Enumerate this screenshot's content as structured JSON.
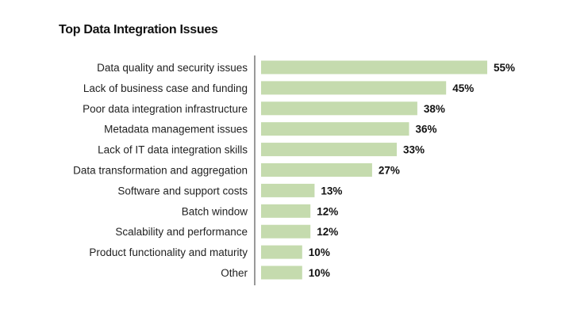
{
  "chart_data": {
    "type": "bar",
    "orientation": "horizontal",
    "title": "Top Data Integration Issues",
    "xlabel": "",
    "ylabel": "",
    "xlim": [
      0,
      60
    ],
    "grid": false,
    "bar_color": "#c5dbae",
    "categories": [
      "Data quality and security issues",
      "Lack of business case and funding",
      "Poor data integration infrastructure",
      "Metadata management issues",
      "Lack of IT data integration skills",
      "Data transformation and aggregation",
      "Software and support costs",
      "Batch window",
      "Scalability and performance",
      "Product functionality and maturity",
      "Other"
    ],
    "values": [
      55,
      45,
      38,
      36,
      33,
      27,
      13,
      12,
      12,
      10,
      10
    ],
    "value_labels": [
      "55%",
      "45%",
      "38%",
      "36%",
      "33%",
      "27%",
      "13%",
      "12%",
      "12%",
      "10%",
      "10%"
    ]
  }
}
